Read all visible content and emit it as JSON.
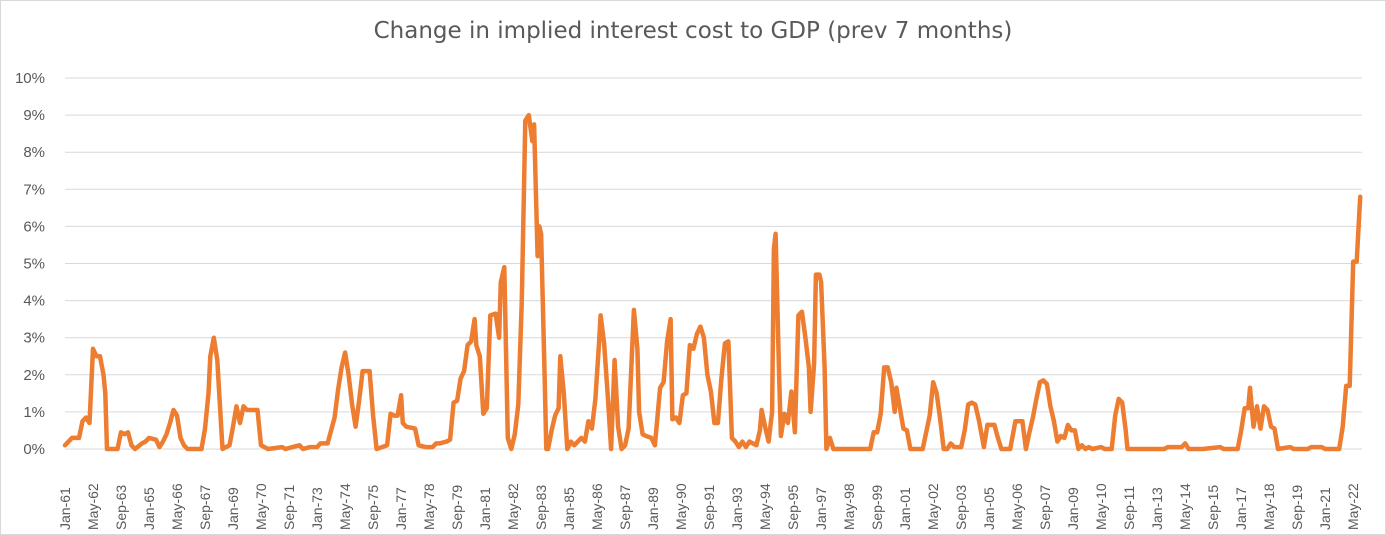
{
  "chart_data": {
    "type": "line",
    "title": "Change in implied interest cost to GDP (prev 7 months)",
    "xlabel": "",
    "ylabel": "",
    "ylim": [
      0,
      0.1
    ],
    "y_ticks": [
      "0%",
      "1%",
      "2%",
      "3%",
      "4%",
      "5%",
      "6%",
      "7%",
      "8%",
      "9%",
      "10%"
    ],
    "x_start": "Jan-61",
    "x_end": "Oct-22",
    "x_tick_labels": [
      "Jan-61",
      "May-62",
      "Sep-63",
      "Jan-65",
      "May-66",
      "Sep-67",
      "Jan-69",
      "May-70",
      "Sep-71",
      "Jan-73",
      "May-74",
      "Sep-75",
      "Jan-77",
      "May-78",
      "Sep-79",
      "Jan-81",
      "May-82",
      "Sep-83",
      "Jan-85",
      "May-86",
      "Sep-87",
      "Jan-89",
      "May-90",
      "Sep-91",
      "Jan-93",
      "May-94",
      "Sep-95",
      "Jan-97",
      "May-98",
      "Sep-99",
      "Jan-01",
      "May-02",
      "Sep-03",
      "Jan-05",
      "May-06",
      "Sep-07",
      "Jan-09",
      "May-10",
      "Sep-11",
      "Jan-13",
      "May-14",
      "Sep-15",
      "Jan-17",
      "May-18",
      "Sep-19",
      "Jan-21",
      "May-22"
    ],
    "grid": true,
    "series": [
      {
        "name": "Change in implied interest cost to GDP",
        "color": "#ED7D31",
        "points": [
          [
            0,
            0.001
          ],
          [
            4,
            0.003
          ],
          [
            8,
            0.003
          ],
          [
            10,
            0.0075
          ],
          [
            12,
            0.0085
          ],
          [
            14,
            0.007
          ],
          [
            16,
            0.027
          ],
          [
            18,
            0.025
          ],
          [
            20,
            0.025
          ],
          [
            22,
            0.02
          ],
          [
            23,
            0.015
          ],
          [
            24,
            0
          ],
          [
            30,
            0
          ],
          [
            32,
            0.0045
          ],
          [
            34,
            0.004
          ],
          [
            36,
            0.0045
          ],
          [
            38,
            0.001
          ],
          [
            40,
            0
          ],
          [
            44,
            0.0015
          ],
          [
            46,
            0.002
          ],
          [
            48,
            0.003
          ],
          [
            52,
            0.0025
          ],
          [
            54,
            0.0005
          ],
          [
            56,
            0.002
          ],
          [
            58,
            0.004
          ],
          [
            60,
            0.007
          ],
          [
            62,
            0.0105
          ],
          [
            64,
            0.009
          ],
          [
            66,
            0.003
          ],
          [
            68,
            0.001
          ],
          [
            70,
            0
          ],
          [
            78,
            0
          ],
          [
            80,
            0.0055
          ],
          [
            82,
            0.015
          ],
          [
            83,
            0.025
          ],
          [
            85,
            0.03
          ],
          [
            87,
            0.024
          ],
          [
            88,
            0.016
          ],
          [
            90,
            0
          ],
          [
            94,
            0.001
          ],
          [
            96,
            0.006
          ],
          [
            98,
            0.0115
          ],
          [
            100,
            0.007
          ],
          [
            102,
            0.0115
          ],
          [
            104,
            0.0105
          ],
          [
            106,
            0.0105
          ],
          [
            110,
            0.0105
          ],
          [
            112,
            0.001
          ],
          [
            116,
            0
          ],
          [
            124,
            0.0005
          ],
          [
            126,
            0
          ],
          [
            130,
            0.0005
          ],
          [
            134,
            0.001
          ],
          [
            136,
            0
          ],
          [
            140,
            0.0005
          ],
          [
            144,
            0.0005
          ],
          [
            146,
            0.0015
          ],
          [
            150,
            0.0015
          ],
          [
            154,
            0.0085
          ],
          [
            156,
            0.016
          ],
          [
            158,
            0.022
          ],
          [
            160,
            0.026
          ],
          [
            162,
            0.02
          ],
          [
            164,
            0.012
          ],
          [
            166,
            0.006
          ],
          [
            168,
            0.013
          ],
          [
            170,
            0.021
          ],
          [
            172,
            0.021
          ],
          [
            174,
            0.021
          ],
          [
            176,
            0.009
          ],
          [
            178,
            0
          ],
          [
            184,
            0.001
          ],
          [
            186,
            0.0095
          ],
          [
            188,
            0.009
          ],
          [
            190,
            0.009
          ],
          [
            192,
            0.0145
          ],
          [
            193,
            0.007
          ],
          [
            195,
            0.006
          ],
          [
            200,
            0.0055
          ],
          [
            202,
            0.001
          ],
          [
            206,
            0.0005
          ],
          [
            210,
            0.0005
          ],
          [
            212,
            0.0015
          ],
          [
            214,
            0.0015
          ],
          [
            218,
            0.002
          ],
          [
            220,
            0.0025
          ],
          [
            222,
            0.0125
          ],
          [
            224,
            0.013
          ],
          [
            226,
            0.019
          ],
          [
            228,
            0.021
          ],
          [
            230,
            0.028
          ],
          [
            232,
            0.029
          ],
          [
            234,
            0.035
          ],
          [
            235,
            0.028
          ],
          [
            237,
            0.025
          ],
          [
            239,
            0.0095
          ],
          [
            241,
            0.011
          ],
          [
            243,
            0.036
          ],
          [
            246,
            0.0365
          ],
          [
            248,
            0.03
          ],
          [
            249,
            0.045
          ],
          [
            251,
            0.049
          ],
          [
            253,
            0.003
          ],
          [
            255,
            0
          ],
          [
            257,
            0.004
          ],
          [
            259,
            0.012
          ],
          [
            261,
            0.04
          ],
          [
            263,
            0.0885
          ],
          [
            265,
            0.09
          ],
          [
            267,
            0.083
          ],
          [
            268,
            0.0875
          ],
          [
            270,
            0.052
          ],
          [
            271,
            0.06
          ],
          [
            272,
            0.058
          ],
          [
            274,
            0.02
          ],
          [
            275,
            0
          ],
          [
            276,
            0
          ],
          [
            278,
            0.005
          ],
          [
            280,
            0.009
          ],
          [
            282,
            0.011
          ],
          [
            283,
            0.025
          ],
          [
            285,
            0.015
          ],
          [
            287,
            0
          ],
          [
            289,
            0.002
          ],
          [
            291,
            0.001
          ],
          [
            293,
            0.002
          ],
          [
            295,
            0.003
          ],
          [
            297,
            0.002
          ],
          [
            299,
            0.0075
          ],
          [
            301,
            0.0055
          ],
          [
            303,
            0.0135
          ],
          [
            305,
            0.028
          ],
          [
            306,
            0.036
          ],
          [
            308,
            0.0285
          ],
          [
            310,
            0.015
          ],
          [
            312,
            0
          ],
          [
            314,
            0.024
          ],
          [
            316,
            0.006
          ],
          [
            318,
            0
          ],
          [
            320,
            0.001
          ],
          [
            322,
            0.0055
          ],
          [
            325,
            0.0375
          ],
          [
            327,
            0.027
          ],
          [
            328,
            0.01
          ],
          [
            330,
            0.004
          ],
          [
            332,
            0.0035
          ],
          [
            335,
            0.003
          ],
          [
            337,
            0.001
          ],
          [
            340,
            0.0165
          ],
          [
            342,
            0.018
          ],
          [
            344,
            0.029
          ],
          [
            346,
            0.035
          ],
          [
            347,
            0.008
          ],
          [
            349,
            0.0085
          ],
          [
            351,
            0.007
          ],
          [
            353,
            0.0145
          ],
          [
            355,
            0.015
          ],
          [
            357,
            0.028
          ],
          [
            359,
            0.027
          ],
          [
            361,
            0.031
          ],
          [
            363,
            0.033
          ],
          [
            365,
            0.03
          ],
          [
            367,
            0.02
          ],
          [
            369,
            0.0155
          ],
          [
            371,
            0.007
          ],
          [
            373,
            0.007
          ],
          [
            375,
            0.019
          ],
          [
            377,
            0.0285
          ],
          [
            379,
            0.029
          ],
          [
            381,
            0.003
          ],
          [
            383,
            0.002
          ],
          [
            385,
            0.0005
          ],
          [
            387,
            0.002
          ],
          [
            389,
            0.0005
          ],
          [
            391,
            0.002
          ],
          [
            393,
            0.0015
          ],
          [
            395,
            0.001
          ],
          [
            397,
            0.005
          ],
          [
            398,
            0.0105
          ],
          [
            400,
            0.006
          ],
          [
            402,
            0.002
          ],
          [
            404,
            0.01
          ],
          [
            405,
            0.054
          ],
          [
            406,
            0.058
          ],
          [
            408,
            0.02
          ],
          [
            409,
            0.0035
          ],
          [
            411,
            0.0095
          ],
          [
            413,
            0.007
          ],
          [
            415,
            0.0155
          ],
          [
            417,
            0.0045
          ],
          [
            419,
            0.036
          ],
          [
            421,
            0.037
          ],
          [
            423,
            0.03
          ],
          [
            425,
            0.022
          ],
          [
            426,
            0.01
          ],
          [
            428,
            0.023
          ],
          [
            429,
            0.047
          ],
          [
            431,
            0.047
          ],
          [
            432,
            0.045
          ],
          [
            434,
            0.022
          ],
          [
            435,
            0
          ],
          [
            437,
            0.003
          ],
          [
            439,
            0
          ],
          [
            460,
            0
          ],
          [
            462,
            0.0045
          ],
          [
            464,
            0.0045
          ],
          [
            466,
            0.0095
          ],
          [
            468,
            0.022
          ],
          [
            470,
            0.022
          ],
          [
            472,
            0.018
          ],
          [
            474,
            0.01
          ],
          [
            475,
            0.0165
          ],
          [
            477,
            0.011
          ],
          [
            479,
            0.0055
          ],
          [
            481,
            0.005
          ],
          [
            483,
            0
          ],
          [
            490,
            0
          ],
          [
            492,
            0.0045
          ],
          [
            494,
            0.009
          ],
          [
            496,
            0.018
          ],
          [
            498,
            0.015
          ],
          [
            500,
            0.008
          ],
          [
            502,
            0
          ],
          [
            504,
            0
          ],
          [
            506,
            0.0015
          ],
          [
            508,
            0.0005
          ],
          [
            512,
            0.0005
          ],
          [
            514,
            0.005
          ],
          [
            516,
            0.012
          ],
          [
            518,
            0.0125
          ],
          [
            520,
            0.012
          ],
          [
            522,
            0.008
          ],
          [
            524,
            0.003
          ],
          [
            525,
            0.0005
          ],
          [
            527,
            0.0065
          ],
          [
            531,
            0.0065
          ],
          [
            533,
            0.003
          ],
          [
            535,
            0
          ],
          [
            540,
            0
          ],
          [
            543,
            0.0075
          ],
          [
            547,
            0.0075
          ],
          [
            549,
            0
          ],
          [
            551,
            0.0045
          ],
          [
            553,
            0.0085
          ],
          [
            555,
            0.0135
          ],
          [
            557,
            0.018
          ],
          [
            559,
            0.0185
          ],
          [
            561,
            0.0175
          ],
          [
            563,
            0.0115
          ],
          [
            565,
            0.0075
          ],
          [
            567,
            0.002
          ],
          [
            569,
            0.0035
          ],
          [
            571,
            0.003
          ],
          [
            573,
            0.0065
          ],
          [
            575,
            0.005
          ],
          [
            577,
            0.005
          ],
          [
            579,
            0
          ],
          [
            581,
            0.001
          ],
          [
            583,
            0
          ],
          [
            585,
            0.0005
          ],
          [
            587,
            0
          ],
          [
            592,
            0.0005
          ],
          [
            594,
            0
          ],
          [
            598,
            0
          ],
          [
            600,
            0.009
          ],
          [
            602,
            0.0135
          ],
          [
            604,
            0.0125
          ],
          [
            606,
            0.005
          ],
          [
            607,
            0
          ],
          [
            628,
            0
          ],
          [
            630,
            0.0005
          ],
          [
            638,
            0.0005
          ],
          [
            640,
            0.0015
          ],
          [
            642,
            0
          ],
          [
            650,
            0
          ],
          [
            660,
            0.0005
          ],
          [
            662,
            0
          ],
          [
            670,
            0
          ],
          [
            672,
            0.005
          ],
          [
            674,
            0.011
          ],
          [
            676,
            0.011
          ],
          [
            677,
            0.0165
          ],
          [
            679,
            0.006
          ],
          [
            681,
            0.0115
          ],
          [
            683,
            0.0055
          ],
          [
            685,
            0.0115
          ],
          [
            687,
            0.0105
          ],
          [
            689,
            0.006
          ],
          [
            691,
            0.0055
          ],
          [
            693,
            0
          ],
          [
            700,
            0.0005
          ],
          [
            702,
            0
          ],
          [
            710,
            0
          ],
          [
            712,
            0.0005
          ],
          [
            718,
            0.0005
          ],
          [
            720,
            0
          ],
          [
            728,
            0
          ],
          [
            730,
            0.006
          ],
          [
            732,
            0.017
          ],
          [
            734,
            0.017
          ],
          [
            736,
            0.0505
          ],
          [
            738,
            0.0505
          ],
          [
            740,
            0.068
          ]
        ]
      }
    ]
  }
}
